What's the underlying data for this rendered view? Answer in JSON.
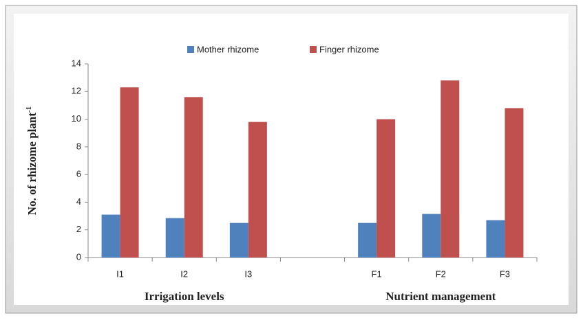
{
  "chart_data": {
    "type": "bar",
    "categories": [
      "I1",
      "I2",
      "I3",
      null,
      "F1",
      "F2",
      "F3"
    ],
    "series": [
      {
        "name": "Mother rhizome",
        "color": "#4f81bd",
        "values": [
          3.1,
          2.85,
          2.5,
          null,
          2.5,
          3.15,
          2.7
        ]
      },
      {
        "name": "Finger rhizome",
        "color": "#c0504d",
        "values": [
          12.3,
          11.6,
          9.8,
          null,
          10.0,
          12.8,
          10.8
        ]
      }
    ],
    "y_label": "No. of rhizome plant",
    "y_label_superscript": "-1",
    "x_group_labels": [
      "Irrigation levels",
      "Nutrient management"
    ],
    "ylim": [
      0,
      14
    ],
    "yticks": [
      0,
      2,
      4,
      6,
      8,
      10,
      12,
      14
    ],
    "grid": false,
    "legend": "top"
  }
}
